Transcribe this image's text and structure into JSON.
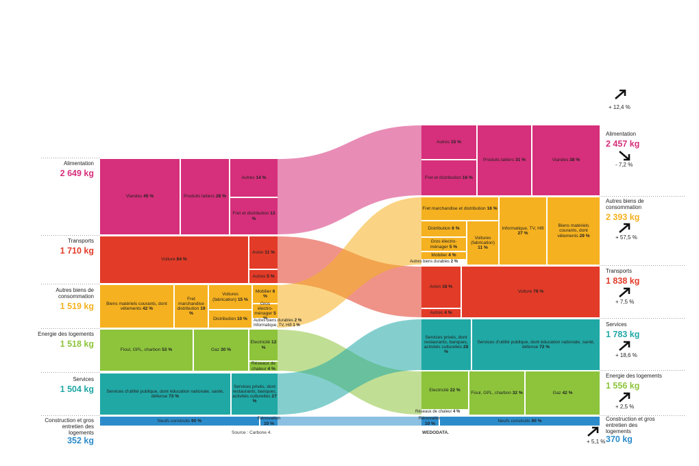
{
  "total_change": "+ 12,4 %",
  "source": "Source : Carbone 4.",
  "credit": "WEDODATA.",
  "left": [
    {
      "name": "Alimentation",
      "total": "2 649 kg",
      "blocks": [
        {
          "label": "Viandes",
          "pct": "45 %"
        },
        {
          "label": "Produits laitiers",
          "pct": "28 %"
        },
        {
          "label": "Autres",
          "pct": "14 %"
        },
        {
          "label": "Fret et distribution",
          "pct": "13 %"
        }
      ]
    },
    {
      "name": "Transports",
      "total": "1 710 kg",
      "blocks": [
        {
          "label": "Voiture",
          "pct": "84 %"
        },
        {
          "label": "Avion",
          "pct": "11 %"
        },
        {
          "label": "Autres",
          "pct": "5 %"
        }
      ]
    },
    {
      "name": "Autres biens de consommation",
      "total": "1 519 kg",
      "blocks": [
        {
          "label": "Biens matériels courants, dont vêtements",
          "pct": "42 %"
        },
        {
          "label": "Fret marchandise distribution",
          "pct": "19 %"
        },
        {
          "label": "Voitures (fabrication)",
          "pct": "15 %"
        },
        {
          "label": "Distribution",
          "pct": "10 %"
        },
        {
          "label": "Mobilier",
          "pct": "6 %"
        },
        {
          "label": "Gros électro-ménager",
          "pct": "5 %"
        },
        {
          "label": "Autres biens durables",
          "pct": "2 %"
        },
        {
          "label": "Informatique, TV, Hifi",
          "pct": "1 %"
        }
      ]
    },
    {
      "name": "Energie des logements",
      "total": "1 518 kg",
      "blocks": [
        {
          "label": "Fioul, GPL, charbon",
          "pct": "53 %"
        },
        {
          "label": "Gaz",
          "pct": "30 %"
        },
        {
          "label": "Electricité",
          "pct": "12 %"
        },
        {
          "label": "Réseaux de chaleur",
          "pct": "4 %"
        }
      ]
    },
    {
      "name": "Services",
      "total": "1 504 kg",
      "blocks": [
        {
          "label": "Services d'utilité publique, dont éducation nationale, santé, défense",
          "pct": "73 %"
        },
        {
          "label": "Services privés, dont restaurants, banques, activités culturelles",
          "pct": "27 %"
        }
      ]
    },
    {
      "name": "Construction et gros entretien des logements",
      "total": "352 kg",
      "blocks": [
        {
          "label": "Neufs construits",
          "pct": "90 %"
        },
        {
          "label": "Rénovation",
          "pct": "10 %"
        }
      ]
    }
  ],
  "right": [
    {
      "name": "Alimentation",
      "total": "2 457 kg",
      "change": "- 7,2 %",
      "blocks": [
        {
          "label": "Autres",
          "pct": "15 %"
        },
        {
          "label": "Fret et distribution",
          "pct": "16 %"
        },
        {
          "label": "Produits laitiers",
          "pct": "31 %"
        },
        {
          "label": "Viandes",
          "pct": "38 %"
        }
      ]
    },
    {
      "name": "Autres biens de consommation",
      "total": "2 393 kg",
      "change": "+ 57,5 %",
      "blocks": [
        {
          "label": "Fret marchandise et distribution",
          "pct": "16 %"
        },
        {
          "label": "Distribution",
          "pct": "6 %"
        },
        {
          "label": "Gros électro-ménager",
          "pct": "5 %"
        },
        {
          "label": "Mobilier",
          "pct": "4 %"
        },
        {
          "label": "Autres biens durables",
          "pct": "2 %"
        },
        {
          "label": "Voitures (fabrication)",
          "pct": "11 %"
        },
        {
          "label": "Informatique, TV, Hifi",
          "pct": "27 %"
        },
        {
          "label": "Biens matériels courants, dont vêtements",
          "pct": "29 %"
        }
      ]
    },
    {
      "name": "Transports",
      "total": "1 838 kg",
      "change": "+ 7,5 %",
      "blocks": [
        {
          "label": "Avion",
          "pct": "18 %"
        },
        {
          "label": "Autres",
          "pct": "4 %"
        },
        {
          "label": "Voiture",
          "pct": "78 %"
        }
      ]
    },
    {
      "name": "Services",
      "total": "1 783 kg",
      "change": "+ 18,6 %",
      "blocks": [
        {
          "label": "Services privés, dont restaurants, banques, activités culturelles",
          "pct": "28 %"
        },
        {
          "label": "Services d'utilité publique, dont éducation nationale, santé, défense",
          "pct": "72 %"
        }
      ]
    },
    {
      "name": "Energie des logements",
      "total": "1 556 kg",
      "change": "+ 2,5 %",
      "blocks": [
        {
          "label": "Electricité",
          "pct": "22 %"
        },
        {
          "label": "Réseaux de chaleur",
          "pct": "4 %"
        },
        {
          "label": "Fioul, GPL, charbon",
          "pct": "32 %"
        },
        {
          "label": "Gaz",
          "pct": "42 %"
        }
      ]
    },
    {
      "name": "Construction et gros entretien des logements",
      "total": "370 kg",
      "change": "+ 5,1 %",
      "blocks": [
        {
          "label": "Rénovation",
          "pct": "10 %"
        },
        {
          "label": "Neufs construits",
          "pct": "90 %"
        }
      ]
    }
  ]
}
